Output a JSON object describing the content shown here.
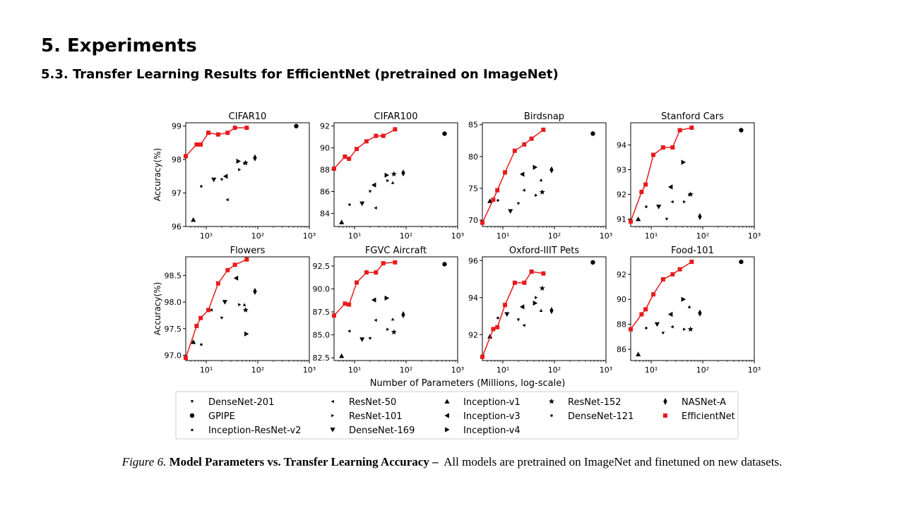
{
  "heading": "5. Experiments",
  "subheading": "5.3. Transfer Learning Results for EfficientNet (pretrained on ImageNet)",
  "caption": {
    "prefix": "Figure 6.",
    "bold": "Model Parameters vs. Transfer Learning Accuracy –",
    "text": "All models are pretrained on ImageNet and finetuned on new datasets."
  },
  "shared_xlabel": "Number of Parameters (Millions, log-scale)",
  "colors": {
    "efficientnet": "#e8191a",
    "others": "#000000",
    "axis": "#000000"
  },
  "legend": [
    {
      "name": "DenseNet-201",
      "marker": "tri-down-small"
    },
    {
      "name": "ResNet-50",
      "marker": "tri-left-small"
    },
    {
      "name": "Inception-v1",
      "marker": "tri-up"
    },
    {
      "name": "ResNet-152",
      "marker": "star"
    },
    {
      "name": "NASNet-A",
      "marker": "thin-diamond"
    },
    {
      "name": "GPIPE",
      "marker": "circle"
    },
    {
      "name": "ResNet-101",
      "marker": "tri-right-small"
    },
    {
      "name": "Inception-v3",
      "marker": "tri-left"
    },
    {
      "name": "DenseNet-121",
      "marker": "point"
    },
    {
      "name": "EfficientNet",
      "marker": "square"
    },
    {
      "name": "Inception-ResNet-v2",
      "marker": "tri-up-small"
    },
    {
      "name": "DenseNet-169",
      "marker": "tri-down"
    },
    {
      "name": "Inception-v4",
      "marker": "tri-right"
    }
  ],
  "chart_data": [
    {
      "type": "scatter",
      "title": "CIFAR10",
      "ylabel": "Accuracy(%)",
      "xscale": "log",
      "xlim": [
        4,
        1000
      ],
      "ylim": [
        96,
        99.1
      ],
      "xticks": [
        {
          "v": 10,
          "label": "10¹"
        },
        {
          "v": 100,
          "label": "10²"
        },
        {
          "v": 1000,
          "label": "10³"
        }
      ],
      "yticks": [
        {
          "v": 96,
          "label": "96"
        },
        {
          "v": 97,
          "label": "97"
        },
        {
          "v": 98,
          "label": "98"
        },
        {
          "v": 99,
          "label": "99"
        }
      ],
      "efficientnet": {
        "x": [
          4,
          6.5,
          7.8,
          11,
          17,
          26,
          36,
          61
        ],
        "y": [
          98.1,
          98.45,
          98.45,
          98.8,
          98.75,
          98.8,
          98.95,
          98.95
        ]
      },
      "models": [
        {
          "model": "GPIPE",
          "x": 557,
          "y": 99.0
        },
        {
          "model": "NASNet-A",
          "x": 88,
          "y": 98.05
        },
        {
          "model": "Inception-v4",
          "x": 42,
          "y": 97.95
        },
        {
          "model": "ResNet-152",
          "x": 58,
          "y": 97.9
        },
        {
          "model": "Inception-ResNet-v2",
          "x": 55,
          "y": 97.9
        },
        {
          "model": "ResNet-101",
          "x": 44,
          "y": 97.7
        },
        {
          "model": "Inception-v3",
          "x": 23.8,
          "y": 97.5
        },
        {
          "model": "DenseNet-169",
          "x": 14,
          "y": 97.4
        },
        {
          "model": "DenseNet-201",
          "x": 20,
          "y": 97.4
        },
        {
          "model": "DenseNet-121",
          "x": 8,
          "y": 97.2
        },
        {
          "model": "ResNet-50",
          "x": 25.6,
          "y": 96.8
        },
        {
          "model": "Inception-v1",
          "x": 5.6,
          "y": 96.2
        }
      ]
    },
    {
      "type": "scatter",
      "title": "CIFAR100",
      "ylabel": "",
      "xscale": "log",
      "xlim": [
        4,
        1000
      ],
      "ylim": [
        82.8,
        92.3
      ],
      "xticks": [
        {
          "v": 10,
          "label": "10¹"
        },
        {
          "v": 100,
          "label": "10²"
        },
        {
          "v": 1000,
          "label": "10³"
        }
      ],
      "yticks": [
        {
          "v": 84,
          "label": "84"
        },
        {
          "v": 86,
          "label": "86"
        },
        {
          "v": 88,
          "label": "88"
        },
        {
          "v": 90,
          "label": "90"
        },
        {
          "v": 92,
          "label": "92"
        }
      ],
      "efficientnet": {
        "x": [
          4,
          6.5,
          7.8,
          11,
          17,
          26,
          36,
          61
        ],
        "y": [
          88.1,
          89.2,
          89.0,
          89.9,
          90.6,
          91.1,
          91.1,
          91.7
        ]
      },
      "models": [
        {
          "model": "GPIPE",
          "x": 557,
          "y": 91.3
        },
        {
          "model": "NASNet-A",
          "x": 88,
          "y": 87.7
        },
        {
          "model": "Inception-v4",
          "x": 42,
          "y": 87.5
        },
        {
          "model": "ResNet-152",
          "x": 58,
          "y": 87.6
        },
        {
          "model": "Inception-ResNet-v2",
          "x": 55,
          "y": 86.8
        },
        {
          "model": "ResNet-101",
          "x": 44,
          "y": 87.0
        },
        {
          "model": "Inception-v3",
          "x": 23.8,
          "y": 86.6
        },
        {
          "model": "DenseNet-169",
          "x": 14,
          "y": 84.9
        },
        {
          "model": "DenseNet-201",
          "x": 20,
          "y": 86.0
        },
        {
          "model": "DenseNet-121",
          "x": 8,
          "y": 84.8
        },
        {
          "model": "ResNet-50",
          "x": 25.6,
          "y": 84.5
        },
        {
          "model": "Inception-v1",
          "x": 5.6,
          "y": 83.2
        }
      ]
    },
    {
      "type": "scatter",
      "title": "Birdsnap",
      "ylabel": "",
      "xscale": "log",
      "xlim": [
        4,
        1000
      ],
      "ylim": [
        69,
        85.3
      ],
      "xticks": [
        {
          "v": 10,
          "label": "10¹"
        },
        {
          "v": 100,
          "label": "10²"
        },
        {
          "v": 1000,
          "label": "10³"
        }
      ],
      "yticks": [
        {
          "v": 70,
          "label": "70"
        },
        {
          "v": 75,
          "label": "75"
        },
        {
          "v": 80,
          "label": "80"
        },
        {
          "v": 85,
          "label": "85"
        }
      ],
      "efficientnet": {
        "x": [
          4,
          6.5,
          7.8,
          11,
          17,
          26,
          36,
          61
        ],
        "y": [
          69.6,
          73.2,
          74.7,
          77.5,
          80.9,
          81.9,
          82.8,
          84.2
        ]
      },
      "models": [
        {
          "model": "GPIPE",
          "x": 557,
          "y": 83.6
        },
        {
          "model": "NASNet-A",
          "x": 88,
          "y": 77.9
        },
        {
          "model": "Inception-v4",
          "x": 42,
          "y": 78.3
        },
        {
          "model": "ResNet-152",
          "x": 58,
          "y": 74.4
        },
        {
          "model": "Inception-ResNet-v2",
          "x": 55,
          "y": 76.3
        },
        {
          "model": "ResNet-101",
          "x": 44,
          "y": 73.9
        },
        {
          "model": "Inception-v3",
          "x": 23.8,
          "y": 77.2
        },
        {
          "model": "DenseNet-169",
          "x": 14,
          "y": 71.4
        },
        {
          "model": "DenseNet-201",
          "x": 20,
          "y": 72.6
        },
        {
          "model": "DenseNet-121",
          "x": 8,
          "y": 73.1
        },
        {
          "model": "ResNet-50",
          "x": 25.6,
          "y": 74.7
        },
        {
          "model": "Inception-v1",
          "x": 5.6,
          "y": 73.0
        }
      ]
    },
    {
      "type": "scatter",
      "title": "Stanford Cars",
      "ylabel": "",
      "xscale": "log",
      "xlim": [
        4,
        1000
      ],
      "ylim": [
        90.7,
        94.9
      ],
      "xticks": [
        {
          "v": 10,
          "label": "10¹"
        },
        {
          "v": 100,
          "label": "10²"
        },
        {
          "v": 1000,
          "label": "10³"
        }
      ],
      "yticks": [
        {
          "v": 91,
          "label": "91"
        },
        {
          "v": 92,
          "label": "92"
        },
        {
          "v": 93,
          "label": "93"
        },
        {
          "v": 94,
          "label": "94"
        }
      ],
      "efficientnet": {
        "x": [
          4,
          6.5,
          7.8,
          11,
          17,
          26,
          36,
          61
        ],
        "y": [
          90.9,
          92.1,
          92.4,
          93.6,
          93.9,
          93.9,
          94.6,
          94.7
        ]
      },
      "models": [
        {
          "model": "GPIPE",
          "x": 557,
          "y": 94.6
        },
        {
          "model": "NASNet-A",
          "x": 88,
          "y": 91.1
        },
        {
          "model": "Inception-v4",
          "x": 42,
          "y": 93.3
        },
        {
          "model": "ResNet-152",
          "x": 58,
          "y": 92.0
        },
        {
          "model": "Inception-ResNet-v2",
          "x": 55,
          "y": 92.0
        },
        {
          "model": "ResNet-101",
          "x": 44,
          "y": 91.7
        },
        {
          "model": "Inception-v3",
          "x": 23.8,
          "y": 92.3
        },
        {
          "model": "DenseNet-169",
          "x": 14,
          "y": 91.5
        },
        {
          "model": "DenseNet-201",
          "x": 20,
          "y": 91.0
        },
        {
          "model": "DenseNet-121",
          "x": 8,
          "y": 91.5
        },
        {
          "model": "ResNet-50",
          "x": 25.6,
          "y": 91.7
        },
        {
          "model": "Inception-v1",
          "x": 5.6,
          "y": 91.0
        }
      ]
    },
    {
      "type": "scatter",
      "title": "Flowers",
      "ylabel": "Accuracy(%)",
      "xscale": "log",
      "xlim": [
        4,
        1000
      ],
      "ylim": [
        96.9,
        98.85
      ],
      "xticks": [
        {
          "v": 10,
          "label": "10¹"
        },
        {
          "v": 100,
          "label": "10²"
        },
        {
          "v": 1000,
          "label": "10³"
        }
      ],
      "yticks": [
        {
          "v": 97.0,
          "label": "97.0"
        },
        {
          "v": 97.5,
          "label": "97.5"
        },
        {
          "v": 98.0,
          "label": "98.0"
        },
        {
          "v": 98.5,
          "label": "98.5"
        }
      ],
      "efficientnet": {
        "x": [
          4,
          6.5,
          7.8,
          11,
          17,
          26,
          36,
          61
        ],
        "y": [
          96.95,
          97.55,
          97.7,
          97.85,
          98.35,
          98.6,
          98.7,
          98.8
        ]
      },
      "models": [
        {
          "model": "NASNet-A",
          "x": 88,
          "y": 98.2
        },
        {
          "model": "Inception-v4",
          "x": 60,
          "y": 97.4
        },
        {
          "model": "ResNet-152",
          "x": 58,
          "y": 97.85
        },
        {
          "model": "Inception-ResNet-v2",
          "x": 55,
          "y": 97.95
        },
        {
          "model": "ResNet-101",
          "x": 44,
          "y": 97.95
        },
        {
          "model": "Inception-v3",
          "x": 38,
          "y": 98.45
        },
        {
          "model": "DenseNet-169",
          "x": 23,
          "y": 98.0
        },
        {
          "model": "DenseNet-201",
          "x": 20,
          "y": 97.7
        },
        {
          "model": "DenseNet-121",
          "x": 8,
          "y": 97.2
        },
        {
          "model": "ResNet-50",
          "x": 12.5,
          "y": 97.85
        },
        {
          "model": "Inception-v1",
          "x": 5.6,
          "y": 97.25
        }
      ]
    },
    {
      "type": "scatter",
      "title": "FGVC Aircraft",
      "ylabel": "",
      "xscale": "log",
      "xlim": [
        4,
        1000
      ],
      "ylim": [
        82.2,
        93.5
      ],
      "xticks": [
        {
          "v": 10,
          "label": "10¹"
        },
        {
          "v": 100,
          "label": "10²"
        },
        {
          "v": 1000,
          "label": "10³"
        }
      ],
      "yticks": [
        {
          "v": 82.5,
          "label": "82.5"
        },
        {
          "v": 85.0,
          "label": "85.0"
        },
        {
          "v": 87.5,
          "label": "87.5"
        },
        {
          "v": 90.0,
          "label": "90.0"
        },
        {
          "v": 92.5,
          "label": "92.5"
        }
      ],
      "efficientnet": {
        "x": [
          4,
          6.5,
          7.8,
          11,
          17,
          26,
          36,
          61
        ],
        "y": [
          87.1,
          88.4,
          88.3,
          90.7,
          91.8,
          91.8,
          92.8,
          92.9
        ]
      },
      "models": [
        {
          "model": "GPIPE",
          "x": 557,
          "y": 92.7
        },
        {
          "model": "NASNet-A",
          "x": 88,
          "y": 87.2
        },
        {
          "model": "Inception-v4",
          "x": 42,
          "y": 89.0
        },
        {
          "model": "ResNet-152",
          "x": 58,
          "y": 85.3
        },
        {
          "model": "Inception-ResNet-v2",
          "x": 55,
          "y": 86.7
        },
        {
          "model": "ResNet-101",
          "x": 44,
          "y": 85.6
        },
        {
          "model": "Inception-v3",
          "x": 23.8,
          "y": 88.8
        },
        {
          "model": "DenseNet-169",
          "x": 14,
          "y": 84.5
        },
        {
          "model": "DenseNet-201",
          "x": 20,
          "y": 84.6
        },
        {
          "model": "DenseNet-121",
          "x": 8,
          "y": 85.4
        },
        {
          "model": "ResNet-50",
          "x": 25.6,
          "y": 86.6
        },
        {
          "model": "Inception-v1",
          "x": 5.6,
          "y": 82.7
        }
      ]
    },
    {
      "type": "scatter",
      "title": "Oxford-IIIT Pets",
      "ylabel": "",
      "xscale": "log",
      "xlim": [
        4,
        1000
      ],
      "ylim": [
        90.6,
        96.2
      ],
      "xticks": [
        {
          "v": 10,
          "label": "10¹"
        },
        {
          "v": 100,
          "label": "10²"
        },
        {
          "v": 1000,
          "label": "10³"
        }
      ],
      "yticks": [
        {
          "v": 92,
          "label": "92"
        },
        {
          "v": 94,
          "label": "94"
        },
        {
          "v": 96,
          "label": "96"
        }
      ],
      "efficientnet": {
        "x": [
          4,
          6.5,
          7.8,
          11,
          17,
          26,
          36,
          61
        ],
        "y": [
          90.8,
          92.3,
          92.4,
          93.6,
          94.8,
          94.8,
          95.4,
          95.3
        ]
      },
      "models": [
        {
          "model": "GPIPE",
          "x": 557,
          "y": 95.9
        },
        {
          "model": "NASNet-A",
          "x": 88,
          "y": 93.3
        },
        {
          "model": "Inception-v4",
          "x": 42,
          "y": 93.7
        },
        {
          "model": "ResNet-152",
          "x": 58,
          "y": 94.5
        },
        {
          "model": "Inception-ResNet-v2",
          "x": 55,
          "y": 93.3
        },
        {
          "model": "ResNet-101",
          "x": 44,
          "y": 94.0
        },
        {
          "model": "Inception-v3",
          "x": 23.8,
          "y": 93.5
        },
        {
          "model": "DenseNet-169",
          "x": 12,
          "y": 93.1
        },
        {
          "model": "DenseNet-201",
          "x": 20,
          "y": 92.8
        },
        {
          "model": "DenseNet-121",
          "x": 8,
          "y": 92.9
        },
        {
          "model": "ResNet-50",
          "x": 25.6,
          "y": 92.5
        },
        {
          "model": "Inception-v1",
          "x": 5.6,
          "y": 91.9
        }
      ]
    },
    {
      "type": "scatter",
      "title": "Food-101",
      "ylabel": "",
      "xscale": "log",
      "xlim": [
        4,
        1000
      ],
      "ylim": [
        85.1,
        93.4
      ],
      "xticks": [
        {
          "v": 10,
          "label": "10¹"
        },
        {
          "v": 100,
          "label": "10²"
        },
        {
          "v": 1000,
          "label": "10³"
        }
      ],
      "yticks": [
        {
          "v": 86,
          "label": "86"
        },
        {
          "v": 88,
          "label": "88"
        },
        {
          "v": 90,
          "label": "90"
        },
        {
          "v": 92,
          "label": "92"
        }
      ],
      "efficientnet": {
        "x": [
          4,
          6.5,
          7.8,
          11,
          17,
          26,
          36,
          61
        ],
        "y": [
          87.6,
          88.8,
          89.2,
          90.4,
          91.6,
          92.0,
          92.4,
          93.0
        ]
      },
      "models": [
        {
          "model": "GPIPE",
          "x": 557,
          "y": 93.0
        },
        {
          "model": "NASNet-A",
          "x": 88,
          "y": 88.9
        },
        {
          "model": "Inception-v4",
          "x": 42,
          "y": 90.0
        },
        {
          "model": "ResNet-152",
          "x": 58,
          "y": 87.6
        },
        {
          "model": "Inception-ResNet-v2",
          "x": 55,
          "y": 89.4
        },
        {
          "model": "ResNet-101",
          "x": 44,
          "y": 87.6
        },
        {
          "model": "Inception-v3",
          "x": 23.8,
          "y": 88.8
        },
        {
          "model": "DenseNet-169",
          "x": 13,
          "y": 88.0
        },
        {
          "model": "DenseNet-201",
          "x": 17,
          "y": 87.3
        },
        {
          "model": "DenseNet-121",
          "x": 8,
          "y": 87.7
        },
        {
          "model": "ResNet-50",
          "x": 25.6,
          "y": 87.8
        },
        {
          "model": "Inception-v1",
          "x": 5.6,
          "y": 85.6
        }
      ]
    }
  ]
}
